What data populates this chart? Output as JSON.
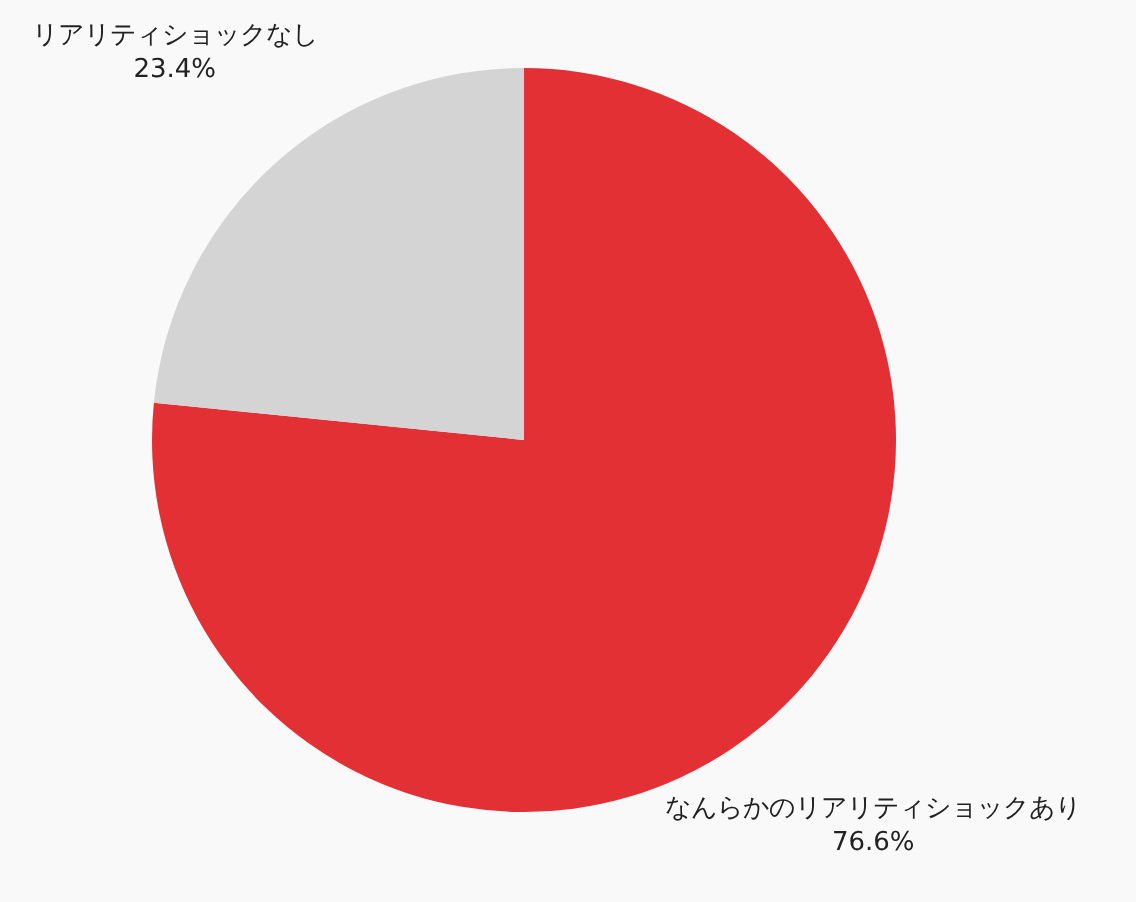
{
  "chart_data": {
    "type": "pie",
    "categories": [
      "なんらかのリアリティショックあり",
      "リアリティショックなし"
    ],
    "values": [
      76.6,
      23.4
    ],
    "value_labels": [
      "76.6%",
      "23.4%"
    ],
    "colors": [
      "#e33035",
      "#d4d4d4"
    ],
    "legend": false
  }
}
